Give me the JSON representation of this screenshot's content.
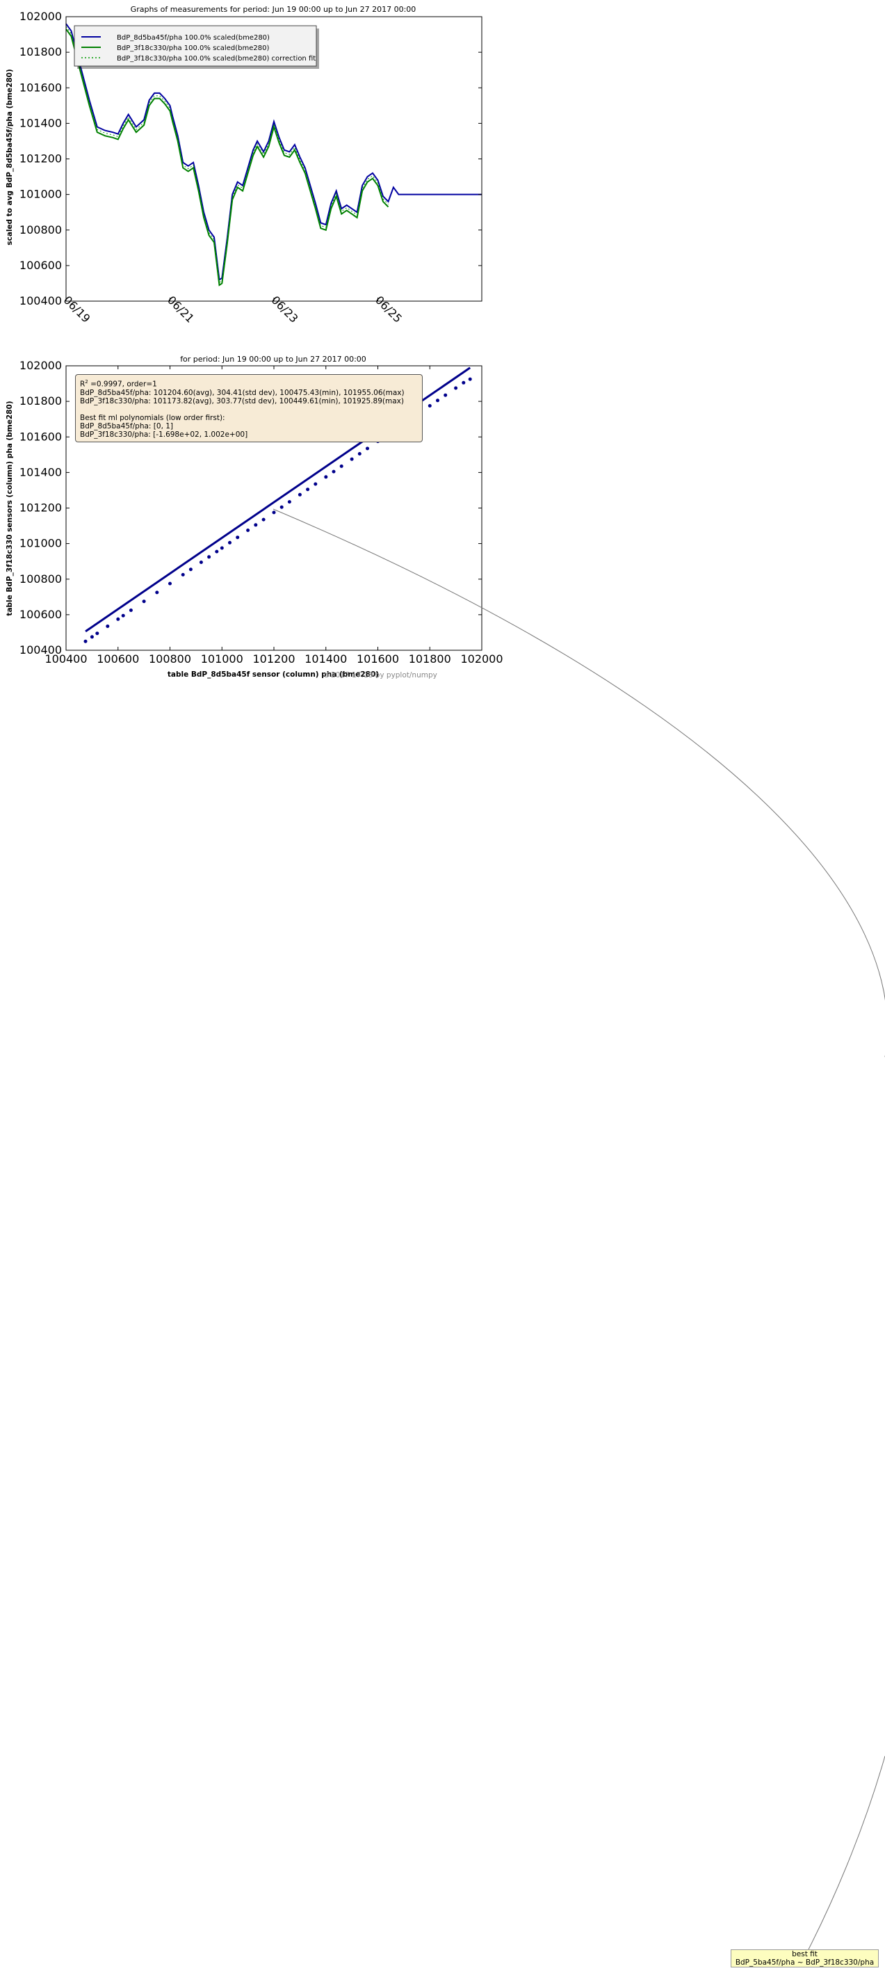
{
  "chart_data": [
    {
      "type": "line",
      "title": "Graphs of measurements for period: Jun 19 00:00 up to Jun 27 2017 00:00",
      "xlabel": "",
      "ylabel": "scaled to avg BdP_8d5ba45f/pha (bme280)",
      "x_range": [
        "2017-06-19",
        "2017-06-27"
      ],
      "ylim": [
        100400,
        102000
      ],
      "yticks": [
        "100400",
        "100600",
        "100800",
        "101000",
        "101200",
        "101400",
        "101600",
        "101800",
        "102000"
      ],
      "xticks": [
        "06/19",
        "06/21",
        "06/23",
        "06/25"
      ],
      "grid": false,
      "legend": "top-left",
      "legend_entries": [
        "BdP_8d5ba45f/pha  100.0% scaled(bme280)",
        "BdP_3f18c330/pha  100.0% scaled(bme280)",
        "BdP_3f18c330/pha  100.0% scaled(bme280) correction fit"
      ],
      "colors": [
        "#0000a0",
        "#008000",
        "#009a00"
      ],
      "series": [
        {
          "name": "BdP_8d5ba45f/pha  100.0% scaled(bme280)",
          "x_days": [
            0,
            0.1,
            0.25,
            0.45,
            0.6,
            0.75,
            0.9,
            1,
            1.1,
            1.2,
            1.35,
            1.5,
            1.6,
            1.7,
            1.8,
            1.9,
            2,
            2.05,
            2.15,
            2.25,
            2.35,
            2.45,
            2.55,
            2.65,
            2.75,
            2.85,
            2.95,
            3,
            3.1,
            3.2,
            3.3,
            3.4,
            3.5,
            3.6,
            3.68,
            3.72,
            3.8,
            3.9,
            4.0,
            4.1,
            4.2,
            4.3,
            4.4,
            4.5,
            4.6,
            4.7,
            4.8,
            4.9,
            5.0,
            5.1,
            5.2,
            5.3,
            5.4,
            5.5,
            5.6,
            5.7,
            5.8,
            5.9,
            6.0,
            6.1,
            6.2,
            6.3,
            6.4,
            6.5,
            6.6,
            6.7,
            6.8,
            6.9,
            7.0,
            7.1,
            7.2,
            7.3,
            7.4,
            7.5,
            7.6,
            7.7,
            7.8,
            7.9,
            8.0
          ],
          "values": [
            101960,
            101920,
            101750,
            101530,
            101380,
            101360,
            101350,
            101340,
            101400,
            101450,
            101380,
            101420,
            101530,
            101570,
            101570,
            101540,
            101500,
            101440,
            101330,
            101180,
            101160,
            101180,
            101050,
            100900,
            100800,
            100760,
            100520,
            100530,
            100750,
            101000,
            101070,
            101050,
            101150,
            101250,
            101300,
            101280,
            101240,
            101300,
            101410,
            101320,
            101250,
            101240,
            101280,
            101210,
            101150,
            101050,
            100950,
            100840,
            100830,
            100950,
            101020,
            100920,
            100940,
            100920,
            100900,
            101050,
            101100,
            101120,
            101080,
            100990,
            100960,
            101040,
            101000,
            101000,
            101000,
            101000,
            101000,
            101000,
            101000,
            101000,
            101000,
            101000,
            101000,
            101000,
            101000,
            101000,
            101000,
            101000,
            101000
          ]
        },
        {
          "name": "BdP_3f18c330/pha  100.0% scaled(bme280)",
          "x_days": [
            0,
            0.1,
            0.25,
            0.45,
            0.6,
            0.75,
            0.9,
            1,
            1.1,
            1.2,
            1.35,
            1.5,
            1.6,
            1.7,
            1.8,
            1.9,
            2,
            2.05,
            2.15,
            2.25,
            2.35,
            2.45,
            2.55,
            2.65,
            2.75,
            2.85,
            2.95,
            3,
            3.1,
            3.2,
            3.3,
            3.4,
            3.5,
            3.6,
            3.68,
            3.72,
            3.8,
            3.9,
            4.0,
            4.1,
            4.2,
            4.3,
            4.4,
            4.5,
            4.6,
            4.7,
            4.8,
            4.9,
            5.0,
            5.1,
            5.2,
            5.3,
            5.4,
            5.5,
            5.6,
            5.7,
            5.8,
            5.9,
            6.0,
            6.1,
            6.2
          ],
          "values": [
            101930,
            101890,
            101720,
            101500,
            101350,
            101330,
            101320,
            101310,
            101370,
            101420,
            101350,
            101390,
            101500,
            101540,
            101540,
            101510,
            101470,
            101410,
            101300,
            101150,
            101130,
            101150,
            101020,
            100870,
            100770,
            100730,
            100490,
            100500,
            100720,
            100970,
            101040,
            101020,
            101120,
            101220,
            101270,
            101250,
            101210,
            101270,
            101380,
            101290,
            101220,
            101210,
            101250,
            101180,
            101120,
            101020,
            100920,
            100810,
            100800,
            100920,
            100990,
            100890,
            100910,
            100890,
            100870,
            101020,
            101070,
            101090,
            101050,
            100960,
            100930
          ]
        }
      ]
    },
    {
      "type": "scatter",
      "title": "for period: Jun 19 00:00 up to Jun 27 2017 00:00",
      "xlabel": "table BdP_8d5ba45f sensor (column) pha (bme280)",
      "ylabel": "table BdP_3f18c330 sensors (column) pha (bme280)",
      "xlim": [
        100400,
        102000
      ],
      "ylim": [
        100400,
        102000
      ],
      "xticks": [
        "100400",
        "100600",
        "100800",
        "101000",
        "101200",
        "101400",
        "101600",
        "101800",
        "102000"
      ],
      "yticks": [
        "100400",
        "100600",
        "100800",
        "101000",
        "101200",
        "101400",
        "101600",
        "101800",
        "102000"
      ],
      "grid": false,
      "fit": {
        "slope": 1.002,
        "intercept": -169.8
      },
      "point_color": "#00008b",
      "points_x": [
        100475,
        100500,
        100520,
        100560,
        100600,
        100620,
        100650,
        100700,
        100750,
        100800,
        100850,
        100880,
        100920,
        100950,
        100980,
        101000,
        101030,
        101060,
        101100,
        101130,
        101160,
        101200,
        101230,
        101260,
        101300,
        101330,
        101360,
        101400,
        101430,
        101460,
        101500,
        101530,
        101560,
        101600,
        101630,
        101660,
        101700,
        101730,
        101760,
        101800,
        101830,
        101860,
        101900,
        101930,
        101955
      ],
      "points_y": [
        100450,
        100475,
        100495,
        100535,
        100575,
        100595,
        100625,
        100675,
        100725,
        100775,
        100825,
        100855,
        100895,
        100925,
        100955,
        100975,
        101005,
        101035,
        101075,
        101105,
        101135,
        101175,
        101205,
        101235,
        101275,
        101305,
        101335,
        101375,
        101405,
        101435,
        101475,
        101505,
        101535,
        101575,
        101605,
        101635,
        101675,
        101705,
        101735,
        101775,
        101805,
        101835,
        101875,
        101905,
        101925
      ]
    }
  ],
  "annotation": {
    "r2_line_prefix": "R",
    "r2_line_sup": "2",
    "r2_line_rest": " =0.9997, order=1",
    "stat_line_1": "BdP_8d5ba45f/pha: 101204.60(avg), 304.41(std dev), 100475.43(min), 101955.06(max)",
    "stat_line_2": "BdP_3f18c330/pha: 101173.82(avg), 303.77(std dev), 100449.61(min), 101925.89(max)",
    "poly_header": "Best fit ml polynomials (low order first):",
    "poly_line_1": "BdP_8d5ba45f/pha: [0, 1]",
    "poly_line_2": "BdP_3f18c330/pha: [-1.698e+02, 1.002e+00]"
  },
  "footer_text": "d 2017 17:18 by pyplot/numpy",
  "tooltip": {
    "line1": "best fit",
    "line2": "BdP_5ba45f/pha ~ BdP_3f18c330/pha"
  }
}
